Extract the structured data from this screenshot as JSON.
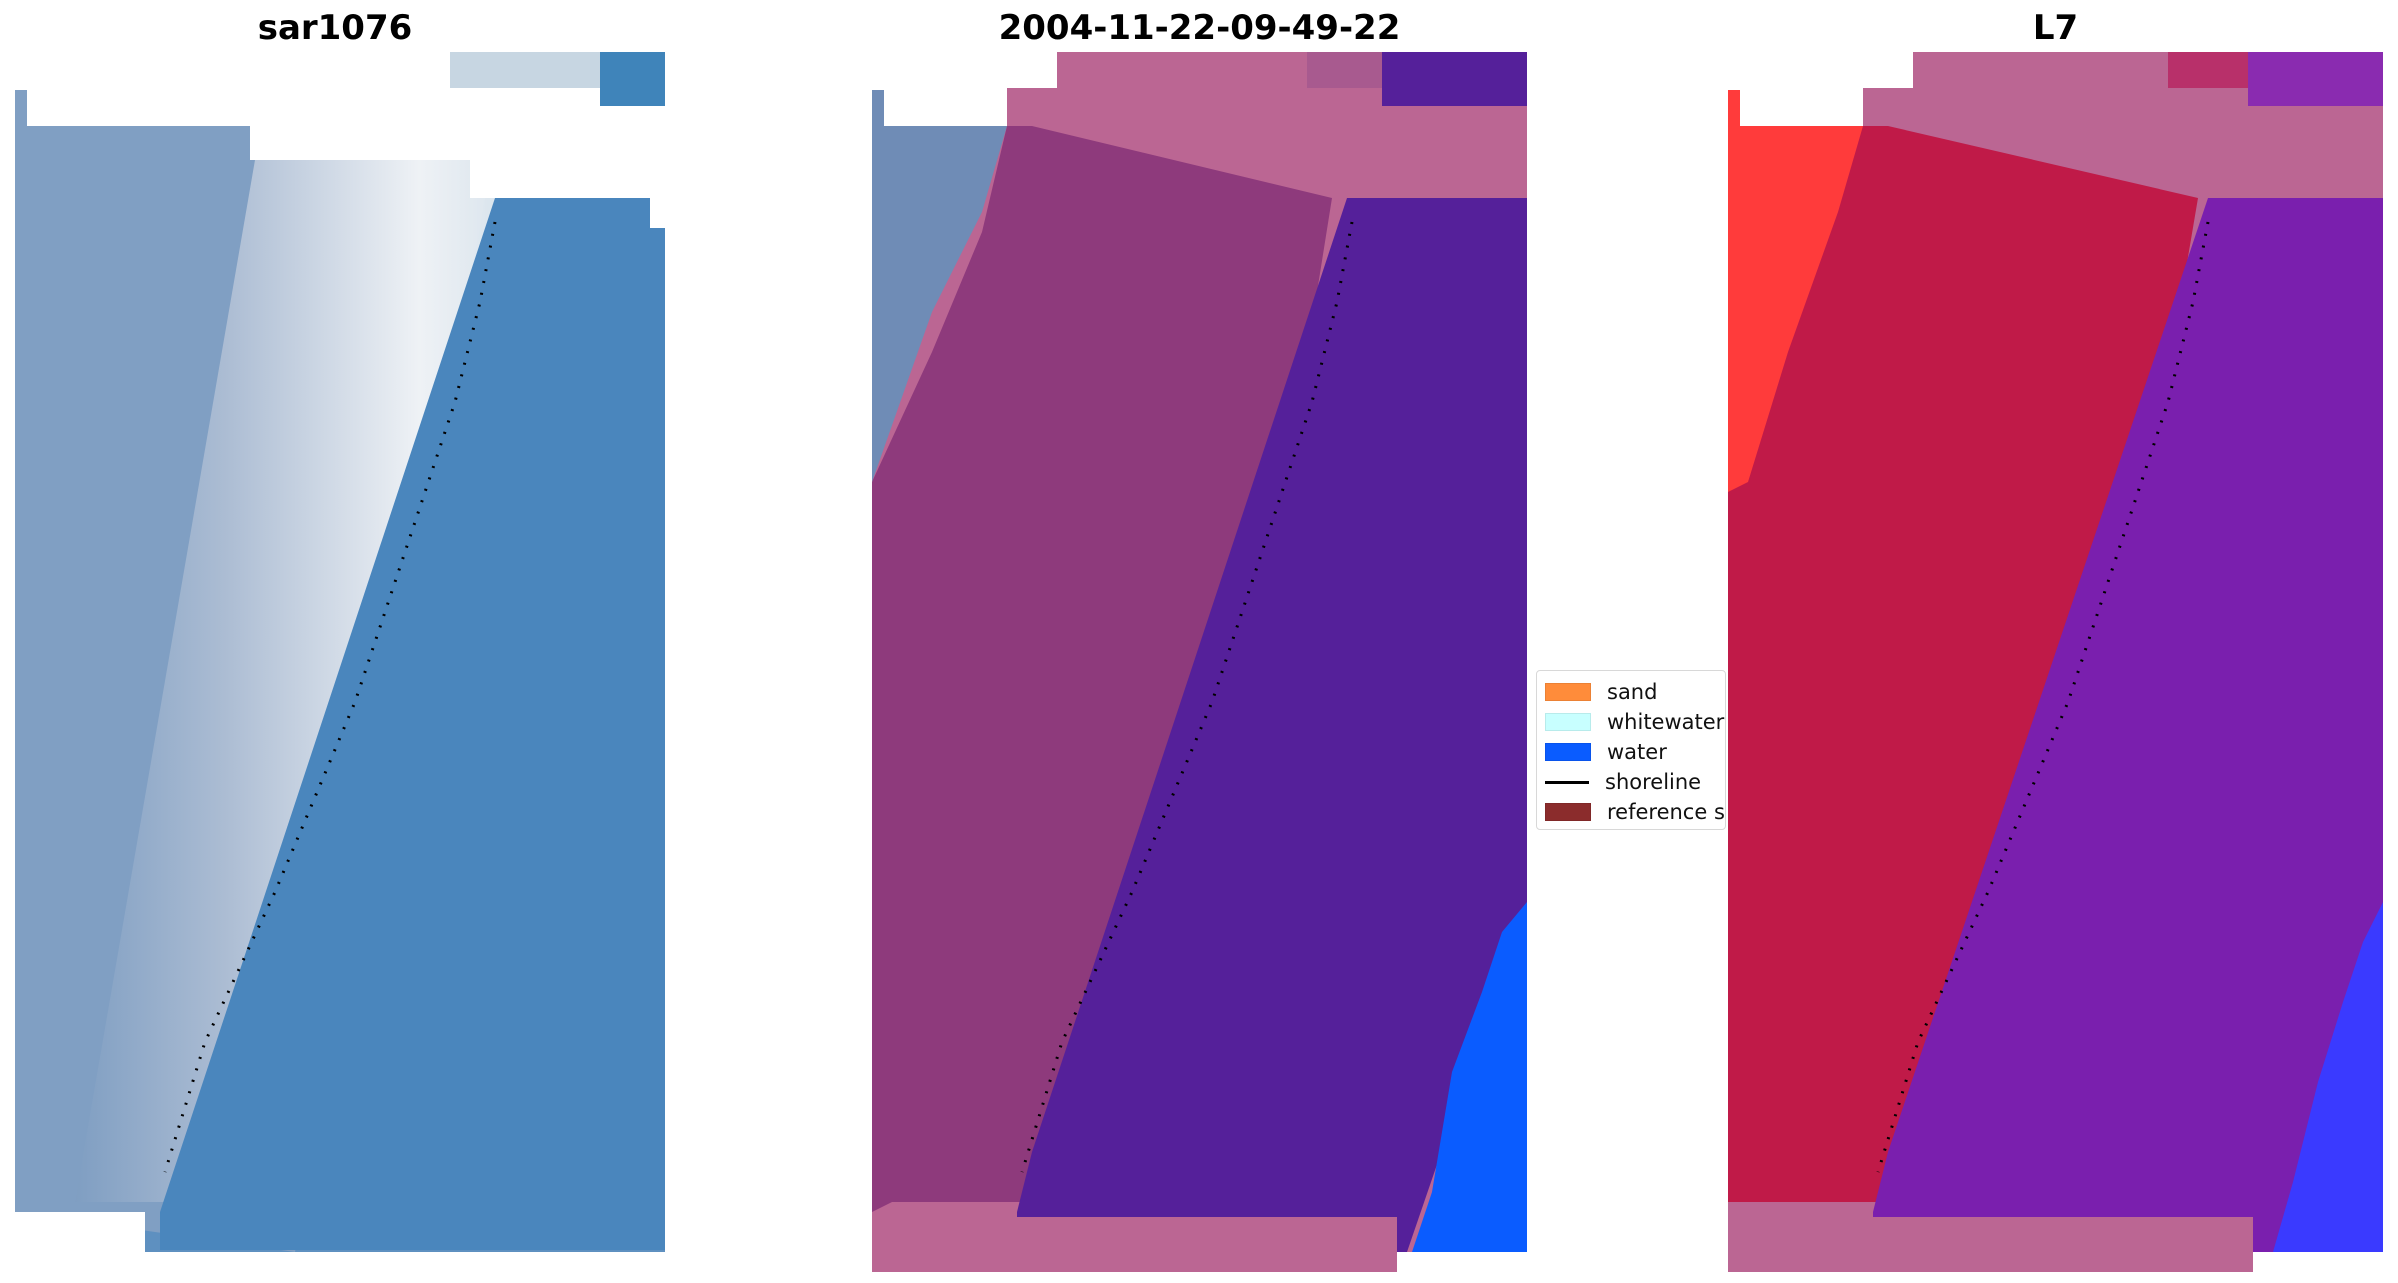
{
  "panels": [
    {
      "title": "sar1076",
      "kind": "rgb"
    },
    {
      "title": "2004-11-22-09-49-22",
      "kind": "classified"
    },
    {
      "title": "L7",
      "kind": "index"
    }
  ],
  "legend": {
    "items": [
      {
        "label": "sand",
        "type": "patch",
        "color": "#ff8c3a"
      },
      {
        "label": "whitewater",
        "type": "patch",
        "color": "#c8ffff"
      },
      {
        "label": "water",
        "type": "patch",
        "color": "#0a5cff"
      },
      {
        "label": "shoreline",
        "type": "line",
        "color": "#000000"
      },
      {
        "label": "reference sh",
        "type": "patch",
        "color": "#8b2c2c"
      }
    ]
  },
  "colors": {
    "rgb_water": "#4a86bd",
    "rgb_beach_white": "#e8eef4",
    "rgb_land": "#7f9ec2",
    "classified_water": "#55209a",
    "classified_land": "#8e3a7c",
    "classified_nodata": "#bb6693",
    "classified_water_blue": "#0a5cff",
    "index_land": "#c01a48",
    "index_water": "#7a1fae",
    "index_red": "#ff3b3b",
    "index_nodata": "#bb6693",
    "index_blue": "#3a3aff",
    "shoreline": "#000000"
  }
}
